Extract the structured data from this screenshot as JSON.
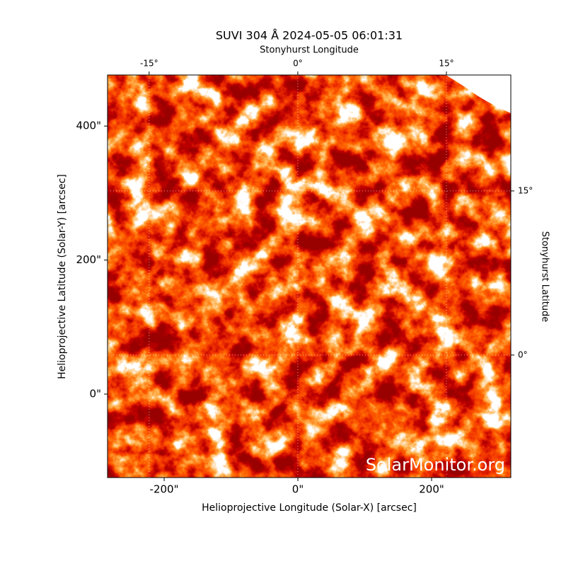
{
  "chart_data": {
    "type": "image",
    "title": "SUVI 304 Å 2024-05-05 06:01:31",
    "xlabel": "Helioprojective Longitude (Solar-X) [arcsec]",
    "ylabel": "Helioprojective Latitude (Solar-Y) [arcsec]",
    "x2label": "Stonyhurst Longitude",
    "y2label": "Stonyhurst Latitude",
    "xlim": [
      -284.7,
      318.5
    ],
    "ylim": [
      -124.6,
      476.2
    ],
    "xticks": [
      {
        "value": -200,
        "label": "-200\""
      },
      {
        "value": 0,
        "label": "0\""
      },
      {
        "value": 200,
        "label": "200\""
      }
    ],
    "yticks": [
      {
        "value": 0,
        "label": "0\""
      },
      {
        "value": 200,
        "label": "200\""
      },
      {
        "value": 400,
        "label": "400\""
      }
    ],
    "x2lim": [
      -19.2,
      21.5
    ],
    "x2ticks": [
      {
        "value": -15,
        "label": "-15°"
      },
      {
        "value": 0,
        "label": "0°"
      },
      {
        "value": 15,
        "label": "15°"
      }
    ],
    "y2lim": [
      -11.2,
      25.6
    ],
    "y2ticks": [
      {
        "value": 0,
        "label": "0°"
      },
      {
        "value": 15,
        "label": "15°"
      }
    ],
    "grid": true,
    "annotation": "SolarMonitor.org"
  }
}
